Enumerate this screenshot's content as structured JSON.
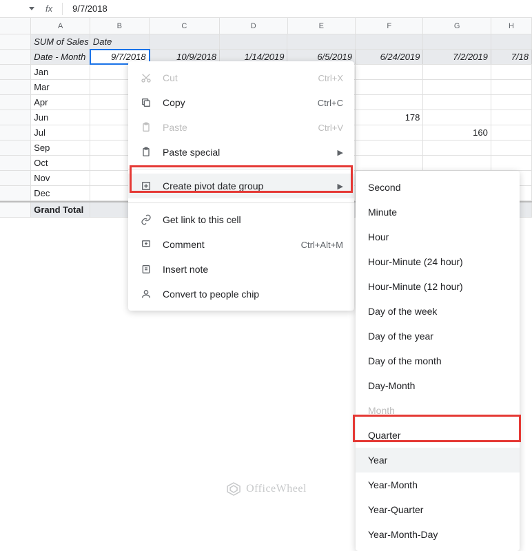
{
  "formula_bar": {
    "value": "9/7/2018"
  },
  "columns": [
    "A",
    "B",
    "C",
    "D",
    "E",
    "F",
    "G",
    "H"
  ],
  "header_row1": {
    "sum_label": "SUM of Sales",
    "date_label": "Date"
  },
  "header_row2": {
    "month_label": "Date - Month",
    "dates": [
      "9/7/2018",
      "10/9/2018",
      "1/14/2019",
      "6/5/2019",
      "6/24/2019",
      "7/2/2019",
      "7/18"
    ]
  },
  "row_labels": [
    "Jan",
    "Mar",
    "Apr",
    "Jun",
    "Jul",
    "Sep",
    "Oct",
    "Nov",
    "Dec"
  ],
  "values": {
    "F_Jun": "178",
    "G_Jul": "160"
  },
  "grand_total": "Grand Total",
  "context_menu": {
    "cut": "Cut",
    "cut_sc": "Ctrl+X",
    "copy": "Copy",
    "copy_sc": "Ctrl+C",
    "paste": "Paste",
    "paste_sc": "Ctrl+V",
    "paste_special": "Paste special",
    "create_group": "Create pivot date group",
    "get_link": "Get link to this cell",
    "comment": "Comment",
    "comment_sc": "Ctrl+Alt+M",
    "insert_note": "Insert note",
    "convert_chip": "Convert to people chip"
  },
  "submenu": {
    "items": [
      "Second",
      "Minute",
      "Hour",
      "Hour-Minute (24 hour)",
      "Hour-Minute (12 hour)",
      "Day of the week",
      "Day of the year",
      "Day of the month",
      "Day-Month",
      "Month",
      "Quarter",
      "Year",
      "Year-Month",
      "Year-Quarter",
      "Year-Month-Day"
    ],
    "disabled_index": 9,
    "hover_index": 11
  },
  "watermark": "OfficeWheel"
}
